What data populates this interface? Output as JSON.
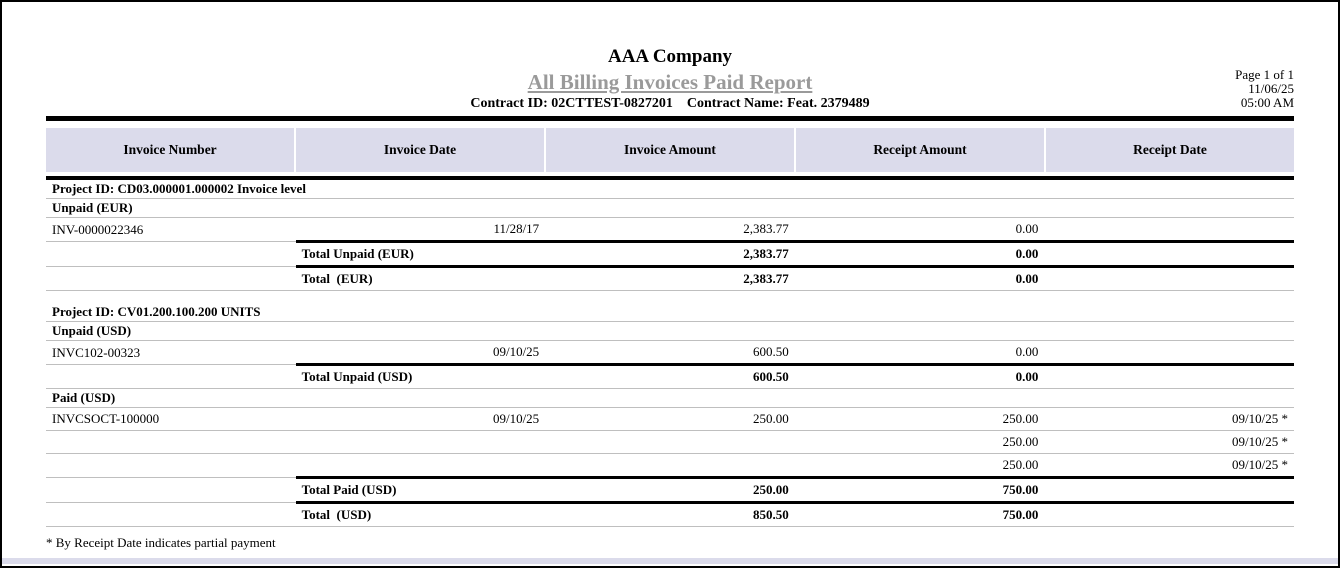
{
  "header": {
    "company": "AAA Company",
    "report_title": "All Billing Invoices Paid Report",
    "contract_id": "Contract ID: 02CTTEST-0827201",
    "contract_name": "Contract Name: Feat. 2379489",
    "page_info": "Page 1 of 1",
    "date": "11/06/25",
    "time": "05:00 AM"
  },
  "table": {
    "columns": [
      "Invoice Number",
      "Invoice Date",
      "Invoice Amount",
      "Receipt Amount",
      "Receipt Date"
    ],
    "rows": [
      {
        "kind": "group",
        "text": "Project ID: CD03.000001.000002 Invoice level",
        "classes": "bb"
      },
      {
        "kind": "group",
        "text": "Unpaid (EUR)",
        "classes": "bb"
      },
      {
        "kind": "data",
        "cells": [
          "INV-0000022346",
          "11/28/17",
          "2,383.77",
          "0.00",
          ""
        ],
        "classes": ""
      },
      {
        "kind": "total",
        "cells": [
          "",
          "Total Unpaid (EUR)",
          "2,383.77",
          "0.00",
          ""
        ],
        "classes": ""
      },
      {
        "kind": "total",
        "cells": [
          "",
          "Total  (EUR)",
          "2,383.77",
          "0.00",
          ""
        ],
        "classes": "bb"
      },
      {
        "kind": "spacer"
      },
      {
        "kind": "group",
        "text": "Project ID: CV01.200.100.200 UNITS",
        "classes": "bb"
      },
      {
        "kind": "group",
        "text": "Unpaid (USD)",
        "classes": "bb"
      },
      {
        "kind": "data",
        "cells": [
          "INVC102-00323",
          "09/10/25",
          "600.50",
          "0.00",
          ""
        ],
        "classes": ""
      },
      {
        "kind": "total",
        "cells": [
          "",
          "Total Unpaid (USD)",
          "600.50",
          "0.00",
          ""
        ],
        "classes": "bb"
      },
      {
        "kind": "group",
        "text": "Paid (USD)",
        "classes": "bb"
      },
      {
        "kind": "data",
        "cells": [
          "INVCSOCT-100000",
          "09/10/25",
          "250.00",
          "250.00",
          "09/10/25 *"
        ],
        "classes": "bb"
      },
      {
        "kind": "data",
        "cells": [
          "",
          "",
          "",
          "250.00",
          "09/10/25 *"
        ],
        "classes": "bb"
      },
      {
        "kind": "data",
        "cells": [
          "",
          "",
          "",
          "250.00",
          "09/10/25 *"
        ],
        "classes": ""
      },
      {
        "kind": "total",
        "cells": [
          "",
          "Total Paid (USD)",
          "250.00",
          "750.00",
          ""
        ],
        "classes": ""
      },
      {
        "kind": "total",
        "cells": [
          "",
          "Total  (USD)",
          "850.50",
          "750.00",
          ""
        ],
        "classes": "bb"
      }
    ]
  },
  "footnote": "* By Receipt Date indicates partial payment",
  "colors": {
    "header_bg": "#dbdbeb",
    "title_gray": "#9a9a9a",
    "rule_black": "#000000",
    "thin_line": "#bfbfbf"
  }
}
